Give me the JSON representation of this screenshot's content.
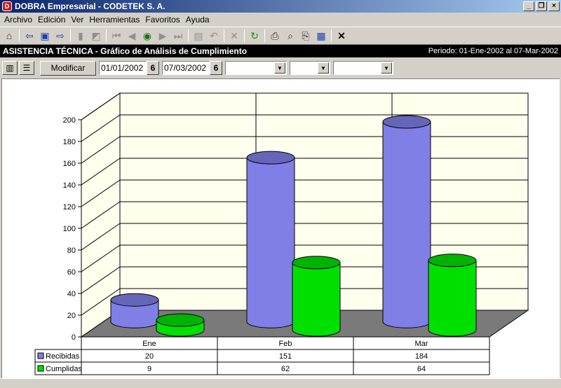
{
  "window": {
    "title": "DOBRA Empresarial - CODETEK S. A."
  },
  "menu": [
    {
      "label": "Archivo"
    },
    {
      "label": "Edición"
    },
    {
      "label": "Ver"
    },
    {
      "label": "Herramientas"
    },
    {
      "label": "Favoritos"
    },
    {
      "label": "Ayuda"
    }
  ],
  "header": {
    "title": "ASISTENCIA TÉCNICA - Gráfico de Análisis de Cumplimiento",
    "period": "Periodo: 01-Ene-2002 al 07-Mar-2002"
  },
  "filters": {
    "modify_label": "Modificar",
    "date_from": "01/01/2002",
    "date_to": "07/03/2002",
    "calendar_glyph": "6"
  },
  "chart_data": {
    "type": "bar",
    "categories": [
      "Ene",
      "Feb",
      "Mar"
    ],
    "series": [
      {
        "name": "Recibidas",
        "values": [
          20,
          151,
          184
        ],
        "color": "#7f7fe6"
      },
      {
        "name": "Cumplidas",
        "values": [
          9,
          62,
          64
        ],
        "color": "#00e000"
      }
    ],
    "y_ticks": [
      "0",
      "20",
      "40",
      "60",
      "80",
      "100",
      "120",
      "140",
      "160",
      "180",
      "200"
    ],
    "ylim": [
      0,
      200
    ],
    "grid": true,
    "data_table": true
  }
}
